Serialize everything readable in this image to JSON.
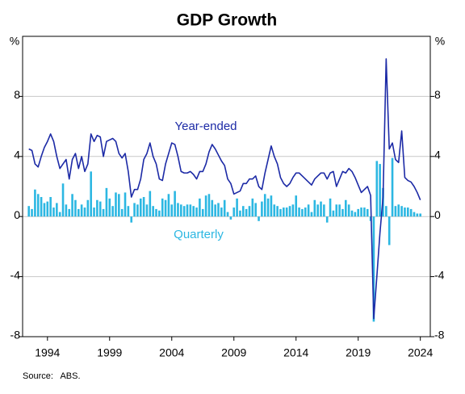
{
  "chart_data": {
    "type": "combo",
    "title": "GDP Growth",
    "y_unit": "%",
    "source": "Source:   ABS.",
    "xlim": [
      1992,
      2024.8
    ],
    "xticks": [
      1994,
      1999,
      2004,
      2009,
      2014,
      2019,
      2024
    ],
    "ylim": [
      -8,
      12
    ],
    "yticks": [
      -8,
      -4,
      0,
      4,
      8
    ],
    "grid": true,
    "x": [
      1992.5,
      1992.75,
      1993,
      1993.25,
      1993.5,
      1993.75,
      1994,
      1994.25,
      1994.5,
      1994.75,
      1995,
      1995.25,
      1995.5,
      1995.75,
      1996,
      1996.25,
      1996.5,
      1996.75,
      1997,
      1997.25,
      1997.5,
      1997.75,
      1998,
      1998.25,
      1998.5,
      1998.75,
      1999,
      1999.25,
      1999.5,
      1999.75,
      2000,
      2000.25,
      2000.5,
      2000.75,
      2001,
      2001.25,
      2001.5,
      2001.75,
      2002,
      2002.25,
      2002.5,
      2002.75,
      2003,
      2003.25,
      2003.5,
      2003.75,
      2004,
      2004.25,
      2004.5,
      2004.75,
      2005,
      2005.25,
      2005.5,
      2005.75,
      2006,
      2006.25,
      2006.5,
      2006.75,
      2007,
      2007.25,
      2007.5,
      2007.75,
      2008,
      2008.25,
      2008.5,
      2008.75,
      2009,
      2009.25,
      2009.5,
      2009.75,
      2010,
      2010.25,
      2010.5,
      2010.75,
      2011,
      2011.25,
      2011.5,
      2011.75,
      2012,
      2012.25,
      2012.5,
      2012.75,
      2013,
      2013.25,
      2013.5,
      2013.75,
      2014,
      2014.25,
      2014.5,
      2014.75,
      2015,
      2015.25,
      2015.5,
      2015.75,
      2016,
      2016.25,
      2016.5,
      2016.75,
      2017,
      2017.25,
      2017.5,
      2017.75,
      2018,
      2018.25,
      2018.5,
      2018.75,
      2019,
      2019.25,
      2019.5,
      2019.75,
      2020,
      2020.25,
      2020.5,
      2020.75,
      2021,
      2021.25,
      2021.5,
      2021.75,
      2022,
      2022.25,
      2022.5,
      2022.75,
      2023,
      2023.25,
      2023.5,
      2023.75,
      2024
    ],
    "series": [
      {
        "name": "Quarterly",
        "type": "bar",
        "color": "#2cb7e2",
        "values": [
          0.7,
          0.5,
          1.8,
          1.5,
          1.3,
          0.9,
          1.0,
          1.3,
          0.6,
          0.9,
          0.3,
          2.2,
          0.8,
          0.5,
          1.5,
          1.1,
          0.5,
          0.8,
          0.6,
          1.1,
          3.0,
          0.6,
          1.1,
          1.0,
          0.5,
          1.9,
          1.2,
          0.7,
          1.6,
          1.5,
          0.5,
          1.6,
          0.7,
          -0.4,
          0.9,
          0.8,
          1.2,
          1.3,
          0.8,
          1.7,
          0.7,
          0.5,
          0.4,
          1.2,
          1.1,
          1.5,
          0.8,
          1.7,
          0.9,
          0.8,
          0.7,
          0.8,
          0.8,
          0.7,
          0.6,
          1.2,
          0.5,
          1.4,
          1.5,
          1.1,
          0.8,
          0.9,
          0.6,
          1.1,
          0.3,
          -0.2,
          0.6,
          1.2,
          0.4,
          0.7,
          0.5,
          0.7,
          1.2,
          0.9,
          -0.3,
          1.0,
          1.5,
          1.2,
          1.4,
          0.8,
          0.7,
          0.5,
          0.6,
          0.6,
          0.7,
          0.8,
          1.4,
          0.6,
          0.5,
          0.6,
          0.8,
          0.3,
          1.1,
          0.8,
          1.0,
          0.8,
          -0.4,
          1.2,
          0.4,
          0.8,
          0.8,
          0.5,
          1.1,
          0.8,
          0.4,
          0.3,
          0.5,
          0.6,
          0.6,
          0.5,
          -0.3,
          -7.0,
          3.7,
          3.5,
          1.9,
          0.7,
          -1.9,
          3.9,
          0.7,
          0.8,
          0.7,
          0.6,
          0.6,
          0.5,
          0.3,
          0.2,
          0.2
        ]
      },
      {
        "name": "Year-ended",
        "type": "line",
        "color": "#1c2aa6",
        "values": [
          4.5,
          4.4,
          3.5,
          3.3,
          4.0,
          4.6,
          5.0,
          5.5,
          5.0,
          4.0,
          3.2,
          3.5,
          3.8,
          2.5,
          3.8,
          4.2,
          3.2,
          4.0,
          3.0,
          3.5,
          5.5,
          5.0,
          5.4,
          5.3,
          4.0,
          5.0,
          5.1,
          5.2,
          5.0,
          4.2,
          3.9,
          4.2,
          3.0,
          1.3,
          1.8,
          1.8,
          2.5,
          3.8,
          4.2,
          4.9,
          4.0,
          3.5,
          2.5,
          2.4,
          3.5,
          4.2,
          4.9,
          4.8,
          4.0,
          3.0,
          2.9,
          2.9,
          3.0,
          2.8,
          2.5,
          3.0,
          3.0,
          3.5,
          4.3,
          4.8,
          4.5,
          4.1,
          3.7,
          3.4,
          2.5,
          2.2,
          1.5,
          1.6,
          1.7,
          2.2,
          2.2,
          2.5,
          2.5,
          2.7,
          2.0,
          1.8,
          2.9,
          3.8,
          4.7,
          4.0,
          3.5,
          2.6,
          2.2,
          2.0,
          2.2,
          2.6,
          2.9,
          2.9,
          2.7,
          2.5,
          2.3,
          2.1,
          2.5,
          2.7,
          2.9,
          2.9,
          2.5,
          2.9,
          3.0,
          2.0,
          2.5,
          3.0,
          2.9,
          3.2,
          3.0,
          2.6,
          2.1,
          1.6,
          1.8,
          2.0,
          1.4,
          -6.8,
          -4.0,
          -1.1,
          1.3,
          10.5,
          4.5,
          4.9,
          3.8,
          3.6,
          5.7,
          2.6,
          2.4,
          2.3,
          2.0,
          1.6,
          1.1
        ]
      }
    ]
  }
}
